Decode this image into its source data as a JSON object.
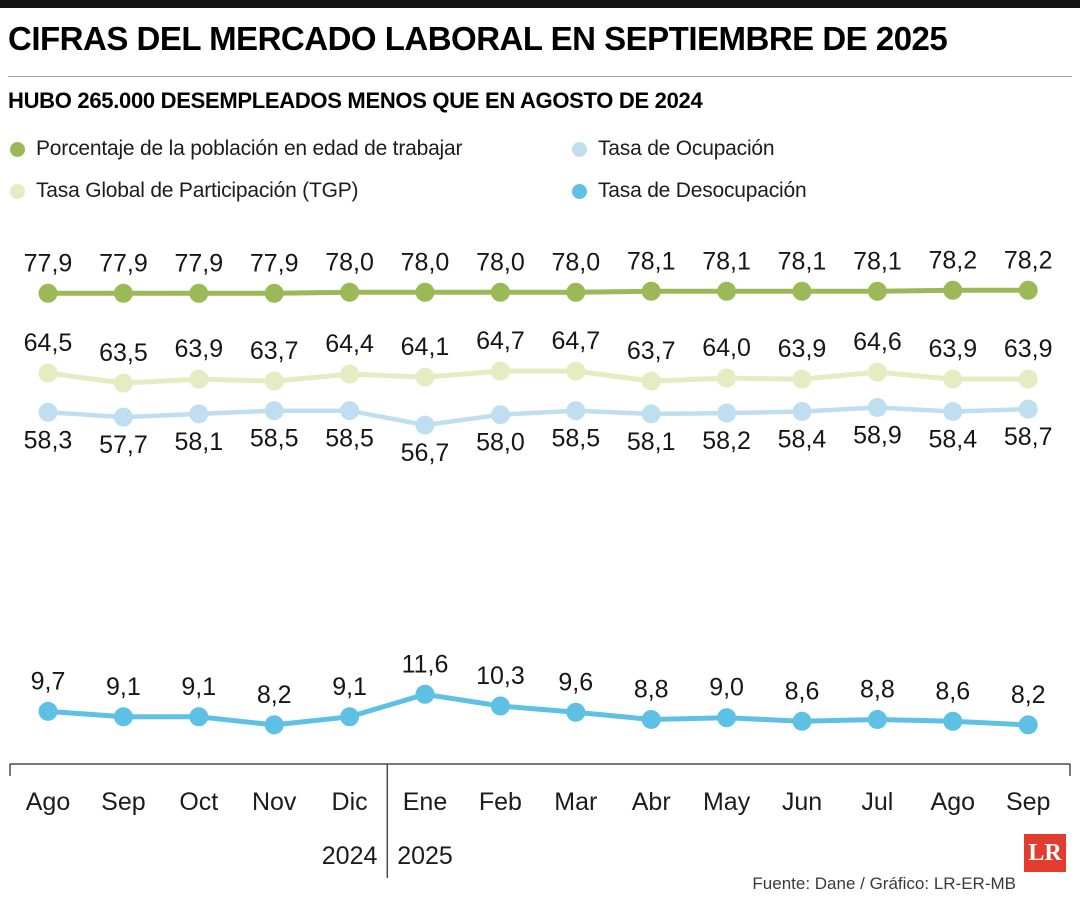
{
  "chart_data": {
    "type": "line",
    "title": "CIFRAS DEL MERCADO LABORAL EN SEPTIEMBRE DE 2025",
    "subtitle": "HUBO 265.000 DESEMPLEADOS MENOS QUE EN AGOSTO DE 2024",
    "legend_position": "top",
    "grid": false,
    "value_decimal_separator": ",",
    "categories": [
      "Ago",
      "Sep",
      "Oct",
      "Nov",
      "Dic",
      "Ene",
      "Feb",
      "Mar",
      "Abr",
      "May",
      "Jun",
      "Jul",
      "Ago",
      "Sep"
    ],
    "years": [
      {
        "label": "2024",
        "category_index": 4
      },
      {
        "label": "2025",
        "category_index": 5
      }
    ],
    "series": [
      {
        "name": "Porcentaje de la población en edad de trabajar",
        "color": "#9bb957",
        "values": [
          77.9,
          77.9,
          77.9,
          77.9,
          78.0,
          78.0,
          78.0,
          78.0,
          78.1,
          78.1,
          78.1,
          78.1,
          78.2,
          78.2
        ]
      },
      {
        "name": "Tasa Global de Participación (TGP)",
        "color": "#e6ecc1",
        "values": [
          64.5,
          63.5,
          63.9,
          63.7,
          64.4,
          64.1,
          64.7,
          64.7,
          63.7,
          64.0,
          63.9,
          64.6,
          63.9,
          63.9
        ]
      },
      {
        "name": "Tasa de Ocupación",
        "color": "#bfdff0",
        "values": [
          58.3,
          57.7,
          58.1,
          58.5,
          58.5,
          56.7,
          58.0,
          58.5,
          58.1,
          58.2,
          58.4,
          58.9,
          58.4,
          58.7
        ]
      },
      {
        "name": "Tasa de Desocupación",
        "color": "#5ec0e4",
        "values": [
          9.7,
          9.1,
          9.1,
          8.2,
          9.1,
          11.6,
          10.3,
          9.6,
          8.8,
          9.0,
          8.6,
          8.8,
          8.6,
          8.2
        ]
      }
    ]
  },
  "footer": {
    "source": "Fuente: Dane / Gráfico: LR-ER-MB",
    "logo_text": "LR",
    "logo_color": "#e23b30"
  }
}
